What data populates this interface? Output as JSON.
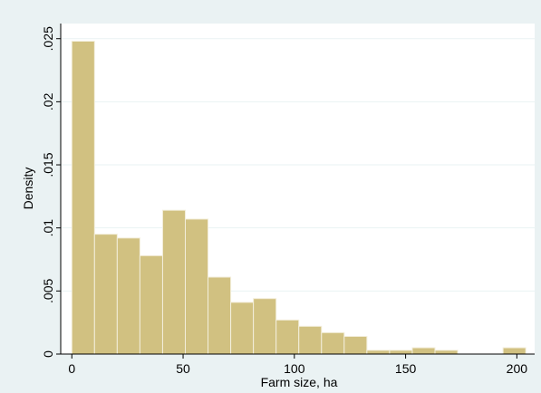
{
  "chart_data": {
    "type": "bar",
    "subtype": "histogram",
    "title": "",
    "xlabel": "Farm size, ha",
    "ylabel": "Density",
    "xlim": [
      -5,
      208
    ],
    "ylim": [
      0,
      0.0262
    ],
    "grid": true,
    "bin_width": 10.2,
    "bins": [
      {
        "start": 0.0,
        "end": 10.2,
        "value": 0.0248
      },
      {
        "start": 10.2,
        "end": 20.4,
        "value": 0.0095
      },
      {
        "start": 20.4,
        "end": 30.6,
        "value": 0.0092
      },
      {
        "start": 30.6,
        "end": 40.8,
        "value": 0.0078
      },
      {
        "start": 40.8,
        "end": 51.0,
        "value": 0.0114
      },
      {
        "start": 51.0,
        "end": 61.2,
        "value": 0.0107
      },
      {
        "start": 61.2,
        "end": 71.4,
        "value": 0.0061
      },
      {
        "start": 71.4,
        "end": 81.6,
        "value": 0.0041
      },
      {
        "start": 81.6,
        "end": 91.8,
        "value": 0.0044
      },
      {
        "start": 91.8,
        "end": 102.0,
        "value": 0.0027
      },
      {
        "start": 102.0,
        "end": 112.2,
        "value": 0.0022
      },
      {
        "start": 112.2,
        "end": 122.4,
        "value": 0.0017
      },
      {
        "start": 122.4,
        "end": 132.6,
        "value": 0.0014
      },
      {
        "start": 132.6,
        "end": 142.8,
        "value": 0.0003
      },
      {
        "start": 142.8,
        "end": 153.0,
        "value": 0.0003
      },
      {
        "start": 153.0,
        "end": 163.2,
        "value": 0.0005
      },
      {
        "start": 163.2,
        "end": 173.4,
        "value": 0.0003
      },
      {
        "start": 173.4,
        "end": 183.6,
        "value": 0.0
      },
      {
        "start": 183.6,
        "end": 193.8,
        "value": 0.0
      },
      {
        "start": 193.8,
        "end": 204.0,
        "value": 0.0005
      }
    ],
    "x_ticks": [
      {
        "value": 0,
        "label": "0"
      },
      {
        "value": 50,
        "label": "50"
      },
      {
        "value": 100,
        "label": "100"
      },
      {
        "value": 150,
        "label": "150"
      },
      {
        "value": 200,
        "label": "200"
      }
    ],
    "y_ticks": [
      {
        "value": 0,
        "label": "0"
      },
      {
        "value": 0.005,
        "label": ".005"
      },
      {
        "value": 0.01,
        "label": ".01"
      },
      {
        "value": 0.015,
        "label": ".015"
      },
      {
        "value": 0.02,
        "label": ".02"
      },
      {
        "value": 0.025,
        "label": ".025"
      }
    ],
    "colors": {
      "outer_background": "#eaf2f3",
      "plot_background": "#ffffff",
      "bar_fill": "#d1c181",
      "bar_edge": "#f3eedb",
      "grid": "#eaf2f3",
      "axis": "#000000"
    }
  }
}
